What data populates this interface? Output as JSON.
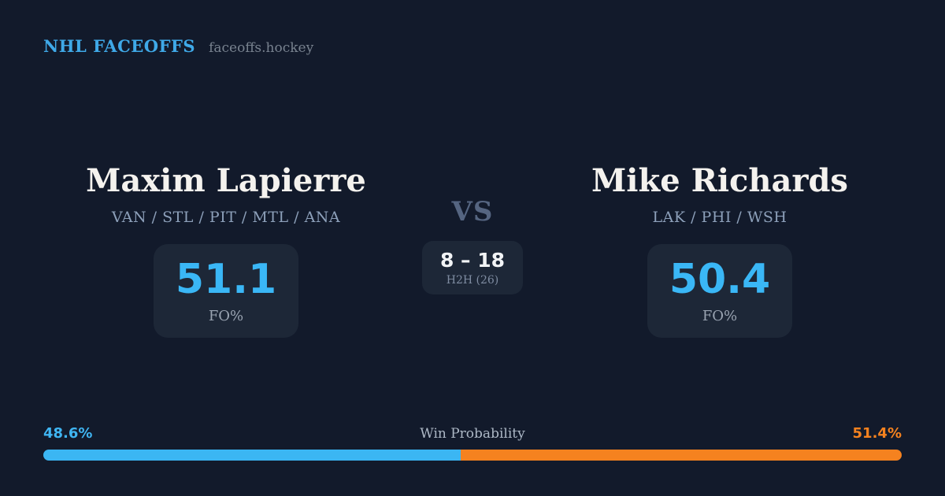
{
  "colors": {
    "background": "#121a2b",
    "card": "#1d2737",
    "brand_blue": "#3fa9e8",
    "stat_blue": "#3ab7f6",
    "orange": "#f5821f",
    "white": "#f4f2ee",
    "slate": "#8da0ba",
    "vs_slate": "#556581"
  },
  "header": {
    "brand": "NHL FACEOFFS",
    "site": "faceoffs.hockey"
  },
  "players": {
    "left": {
      "name": "Maxim Lapierre",
      "teams": "VAN / STL / PIT / MTL / ANA",
      "fo_pct": "51.1",
      "stat_label": "FO%"
    },
    "right": {
      "name": "Mike Richards",
      "teams": "LAK / PHI / WSH",
      "fo_pct": "50.4",
      "stat_label": "FO%"
    }
  },
  "matchup": {
    "vs_label": "VS",
    "h2h_score": "8 – 18",
    "h2h_label": "H2H (26)"
  },
  "win_probability": {
    "title": "Win Probability",
    "left_pct": "48.6%",
    "right_pct": "51.4%",
    "left_value": 48.6,
    "right_value": 51.4
  }
}
